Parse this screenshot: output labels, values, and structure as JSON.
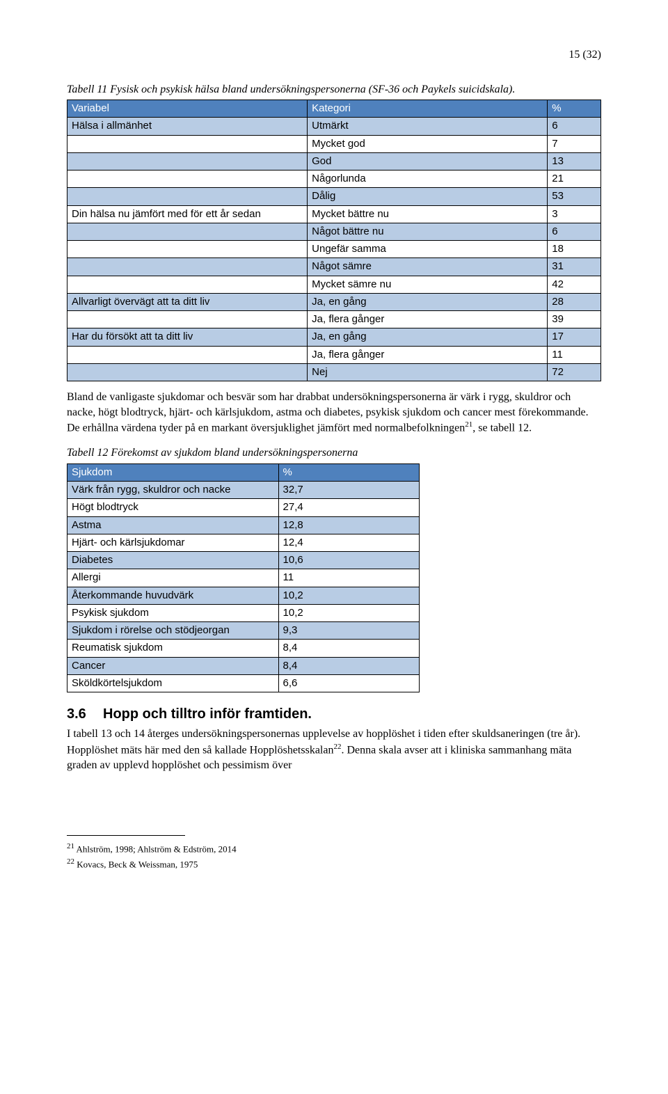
{
  "page_number": "15 (32)",
  "table11": {
    "caption": "Tabell 11 Fysisk och psykisk hälsa bland undersökningspersonerna (SF-36 och Paykels suicidskala).",
    "header_bg": "#4f81bd",
    "light_bg": "#b8cce4",
    "white_bg": "#ffffff",
    "border_color": "#000000",
    "columns": [
      "Variabel",
      "Kategori",
      "%"
    ],
    "col_widths": [
      "45%",
      "45%",
      "10%"
    ],
    "rows": [
      {
        "cells": [
          "Hälsa i allmänhet",
          "Utmärkt",
          "6"
        ],
        "bg": "light"
      },
      {
        "cells": [
          "",
          "Mycket god",
          "7"
        ],
        "bg": "white"
      },
      {
        "cells": [
          "",
          "God",
          "13"
        ],
        "bg": "light"
      },
      {
        "cells": [
          "",
          "Någorlunda",
          "21"
        ],
        "bg": "white"
      },
      {
        "cells": [
          "",
          "Dålig",
          "53"
        ],
        "bg": "light"
      },
      {
        "cells": [
          "Din hälsa nu jämfört med för ett år sedan",
          "Mycket bättre nu",
          "3"
        ],
        "bg": "white"
      },
      {
        "cells": [
          "",
          "Något bättre nu",
          "6"
        ],
        "bg": "light"
      },
      {
        "cells": [
          "",
          "Ungefär samma",
          "18"
        ],
        "bg": "white"
      },
      {
        "cells": [
          "",
          "Något sämre",
          "31"
        ],
        "bg": "light"
      },
      {
        "cells": [
          "",
          "Mycket sämre nu",
          "42"
        ],
        "bg": "white"
      },
      {
        "cells": [
          "Allvarligt övervägt att ta ditt liv",
          "Ja, en gång",
          "28"
        ],
        "bg": "light"
      },
      {
        "cells": [
          "",
          "Ja, flera gånger",
          "39"
        ],
        "bg": "white"
      },
      {
        "cells": [
          "Har du försökt att ta ditt liv",
          "Ja, en gång",
          "17"
        ],
        "bg": "light"
      },
      {
        "cells": [
          "",
          "Ja, flera gånger",
          "11"
        ],
        "bg": "white"
      },
      {
        "cells": [
          "",
          "Nej",
          "72"
        ],
        "bg": "light"
      }
    ]
  },
  "paragraph1": "Bland de vanligaste sjukdomar och besvär som har drabbat undersökningspersonerna är värk i rygg, skuldror och nacke, högt blodtryck, hjärt- och kärlsjukdom, astma och diabetes, psykisk sjukdom och cancer mest förekommande. De erhållna värdena tyder på en markant översjuklighet jämfört med normalbefolkningen",
  "paragraph1_sup": "21",
  "paragraph1_tail": ", se tabell 12.",
  "table12": {
    "caption": "Tabell 12 Förekomst av sjukdom bland undersökningspersonerna",
    "header_bg": "#4f81bd",
    "light_bg": "#b8cce4",
    "white_bg": "#ffffff",
    "border_color": "#000000",
    "columns": [
      "Sjukdom",
      "%"
    ],
    "col_widths": [
      "60%",
      "40%"
    ],
    "rows": [
      {
        "cells": [
          "Värk från rygg, skuldror och nacke",
          "32,7"
        ],
        "bg": "light"
      },
      {
        "cells": [
          "Högt blodtryck",
          "27,4"
        ],
        "bg": "white"
      },
      {
        "cells": [
          "Astma",
          "12,8"
        ],
        "bg": "light"
      },
      {
        "cells": [
          "Hjärt- och kärlsjukdomar",
          "12,4"
        ],
        "bg": "white"
      },
      {
        "cells": [
          "Diabetes",
          "10,6"
        ],
        "bg": "light"
      },
      {
        "cells": [
          "Allergi",
          "11"
        ],
        "bg": "white"
      },
      {
        "cells": [
          "Återkommande huvudvärk",
          "10,2"
        ],
        "bg": "light"
      },
      {
        "cells": [
          "Psykisk sjukdom",
          "10,2"
        ],
        "bg": "white"
      },
      {
        "cells": [
          "Sjukdom i rörelse och stödjeorgan",
          "9,3"
        ],
        "bg": "light"
      },
      {
        "cells": [
          "Reumatisk sjukdom",
          "8,4"
        ],
        "bg": "white"
      },
      {
        "cells": [
          "Cancer",
          "8,4"
        ],
        "bg": "light"
      },
      {
        "cells": [
          "Sköldkörtelsjukdom",
          "6,6"
        ],
        "bg": "white"
      }
    ]
  },
  "section": {
    "num": "3.6",
    "title": "Hopp och tilltro inför framtiden."
  },
  "paragraph2_a": "I tabell 13 och 14 återges undersökningspersonernas upplevelse av hopplöshet i tiden efter skuldsaneringen (tre år). Hopplöshet mäts här med den så kallade Hopplöshetsskalan",
  "paragraph2_sup": "22",
  "paragraph2_b": ". Denna skala avser att i kliniska sammanhang mäta graden av upplevd hopplöshet och pessimism över",
  "footnotes": [
    {
      "num": "21",
      "text": "Ahlström, 1998; Ahlström & Edström, 2014"
    },
    {
      "num": "22",
      "text": "Kovacs, Beck & Weissman, 1975"
    }
  ]
}
